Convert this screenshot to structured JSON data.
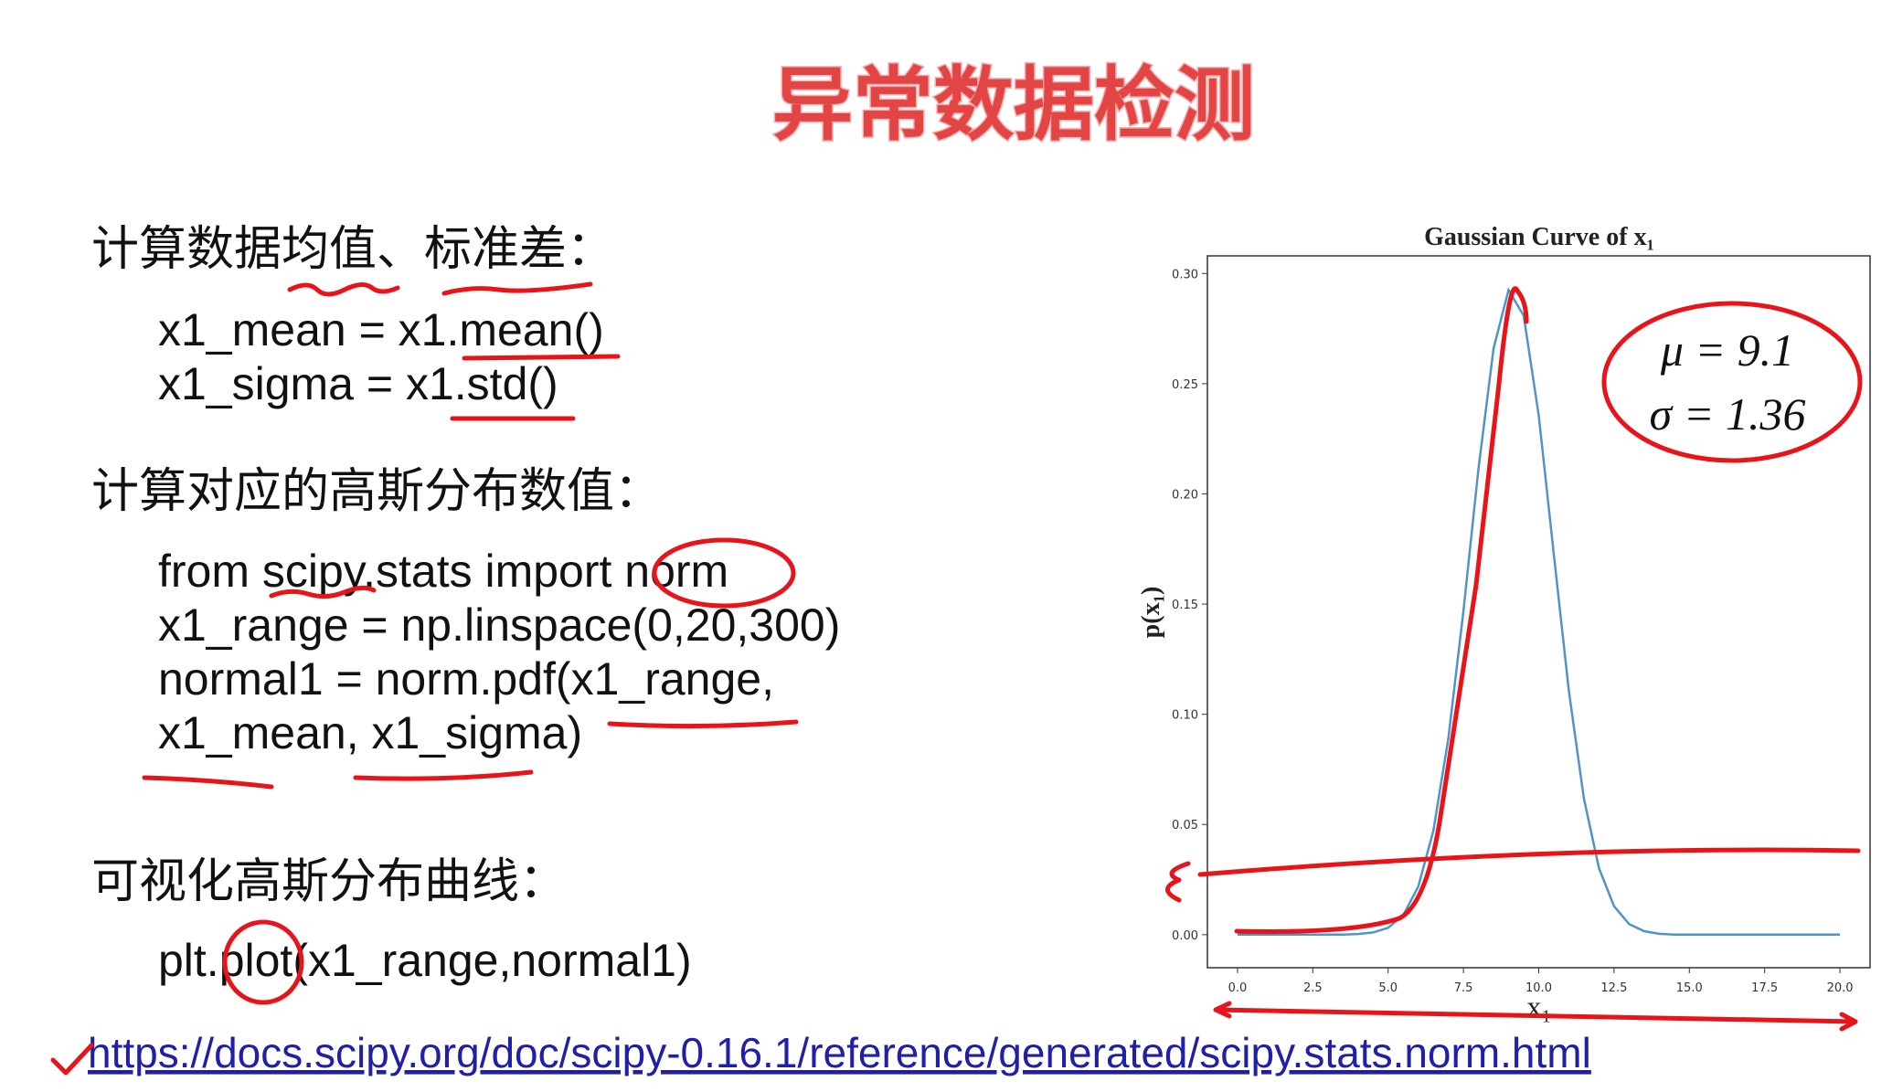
{
  "title": "异常数据检测",
  "sections": [
    {
      "heading": "计算数据均值、标准差：",
      "code": [
        "x1_mean = x1.mean()",
        "x1_sigma = x1.std()"
      ]
    },
    {
      "heading": "计算对应的高斯分布数值：",
      "code": [
        "from scipy.stats import norm",
        "x1_range = np.linspace(0,20,300)",
        "normal1 = norm.pdf(x1_range,",
        "x1_mean, x1_sigma)"
      ]
    },
    {
      "heading": "可视化高斯分布曲线：",
      "code": [
        "plt.plot(x1_range,normal1)"
      ]
    }
  ],
  "link": "https://docs.scipy.org/doc/scipy-0.16.1/reference/generated/scipy.stats.norm.html",
  "chart_data": {
    "type": "line",
    "title": "Gaussian Curve of x₁",
    "x_label": "x₁",
    "y_label": "p(x₁)",
    "color": "#4f94c8",
    "x": [
      0,
      0.5,
      1,
      1.5,
      2,
      2.5,
      3,
      3.5,
      4,
      4.5,
      5,
      5.5,
      6,
      6.5,
      7,
      7.5,
      8,
      8.5,
      9,
      9.5,
      10,
      10.5,
      11,
      11.5,
      12,
      12.5,
      13,
      13.5,
      14,
      14.5,
      15,
      15.5,
      16,
      16.5,
      17,
      17.5,
      18,
      18.5,
      19,
      19.5,
      20
    ],
    "values": [
      0,
      0,
      0,
      0,
      0,
      0,
      0,
      0,
      0.0003,
      0.001,
      0.0031,
      0.0088,
      0.0218,
      0.0471,
      0.089,
      0.1468,
      0.2115,
      0.2661,
      0.2925,
      0.2809,
      0.2356,
      0.1726,
      0.1105,
      0.0618,
      0.0302,
      0.0129,
      0.0048,
      0.0016,
      0.0004,
      0,
      0,
      0,
      0,
      0,
      0,
      0,
      0,
      0,
      0,
      0,
      0
    ],
    "xlim": [
      -1,
      21
    ],
    "ylim": [
      -0.015,
      0.308
    ],
    "xticks": [
      {
        "value": 0,
        "label": "0.0"
      },
      {
        "value": 2.5,
        "label": "2.5"
      },
      {
        "value": 5,
        "label": "5.0"
      },
      {
        "value": 7.5,
        "label": "7.5"
      },
      {
        "value": 10,
        "label": "10.0"
      },
      {
        "value": 12.5,
        "label": "12.5"
      },
      {
        "value": 15,
        "label": "15.0"
      },
      {
        "value": 17.5,
        "label": "17.5"
      },
      {
        "value": 20,
        "label": "20.0"
      }
    ],
    "yticks": [
      {
        "value": 0,
        "label": "0.00"
      },
      {
        "value": 0.05,
        "label": "0.05"
      },
      {
        "value": 0.1,
        "label": "0.10"
      },
      {
        "value": 0.15,
        "label": "0.15"
      },
      {
        "value": 0.2,
        "label": "0.20"
      },
      {
        "value": 0.25,
        "label": "0.25"
      },
      {
        "value": 0.3,
        "label": "0.30"
      }
    ],
    "annotations": [
      "μ = 9.1",
      "σ = 1.36"
    ]
  }
}
